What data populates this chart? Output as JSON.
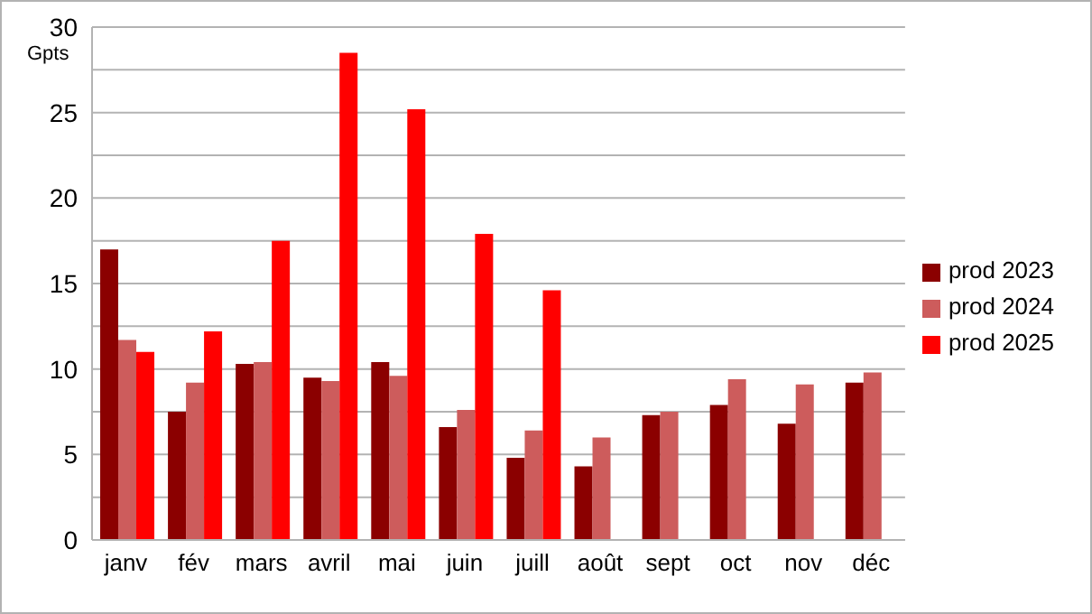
{
  "chart_data": {
    "type": "bar",
    "ylabel": "Gpts",
    "categories": [
      "janv",
      "fév",
      "mars",
      "avril",
      "mai",
      "juin",
      "juill",
      "août",
      "sept",
      "oct",
      "nov",
      "déc"
    ],
    "series": [
      {
        "name": "prod 2023",
        "color": "#8b0000",
        "values": [
          17.0,
          7.5,
          10.3,
          9.5,
          10.4,
          6.6,
          4.8,
          4.3,
          7.3,
          7.9,
          6.8,
          9.2
        ]
      },
      {
        "name": "prod 2024",
        "color": "#cd5c5c",
        "values": [
          11.7,
          9.2,
          10.4,
          9.3,
          9.6,
          7.6,
          6.4,
          6.0,
          7.5,
          9.4,
          9.1,
          9.8
        ]
      },
      {
        "name": "prod 2025",
        "color": "#ff0000",
        "values": [
          11.0,
          12.2,
          17.5,
          28.5,
          25.2,
          17.9,
          14.6,
          null,
          null,
          null,
          null,
          null
        ]
      }
    ],
    "ylim": [
      0,
      30
    ],
    "yticks": [
      0,
      {
        "value": 2.5,
        "label": null
      },
      5,
      {
        "value": 7.5,
        "label": null
      },
      10,
      {
        "value": 12.5,
        "label": null
      },
      15,
      {
        "value": 17.5,
        "label": null
      },
      20,
      {
        "value": 22.5,
        "label": null
      },
      25,
      {
        "value": 27.5,
        "label": null
      },
      30
    ],
    "grid": "y",
    "legend": "right"
  }
}
